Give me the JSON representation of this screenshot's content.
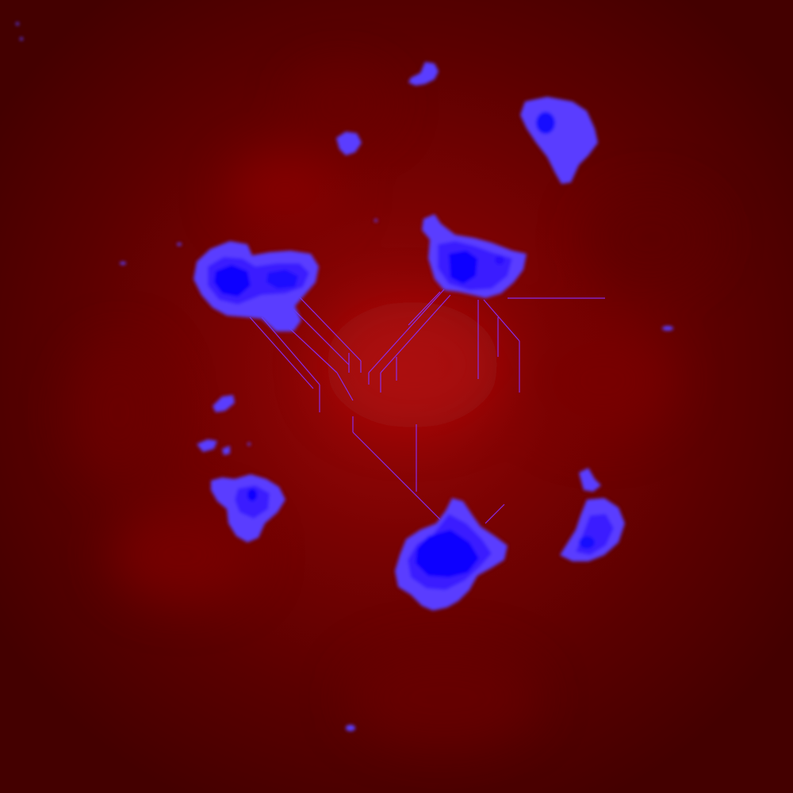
{
  "palette": {
    "background_dark": "#480000",
    "background_mid": "#6a0000",
    "background_glow": "#a00808",
    "island_outer": "#5a3cff",
    "island_mid": "#3a1dff",
    "island_core": "#0a00ff",
    "vein_line": "#8a30ff"
  }
}
